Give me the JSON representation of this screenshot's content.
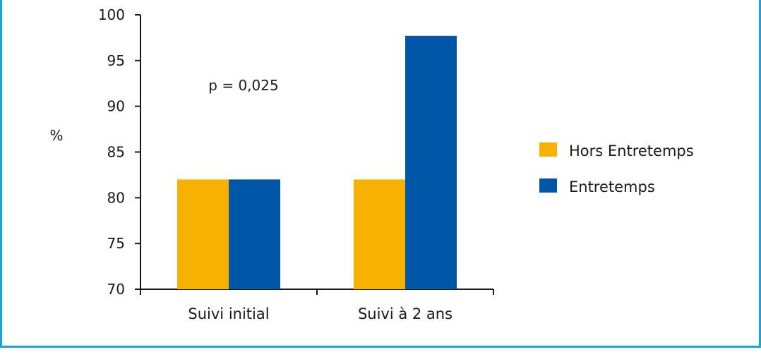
{
  "chart_data": {
    "type": "bar",
    "categories": [
      "Suivi initial",
      "Suivi à 2 ans"
    ],
    "series": [
      {
        "name": "Hors Entretemps",
        "values": [
          82,
          82
        ],
        "color": "#f7b100"
      },
      {
        "name": "Entretemps",
        "values": [
          82,
          97.7
        ],
        "color": "#0057a8"
      }
    ],
    "ylabel": "%",
    "ylim": [
      70,
      100
    ],
    "yticks": [
      "70",
      "75",
      "80",
      "85",
      "90",
      "95",
      "100"
    ],
    "annotations": [
      "p = 0,025"
    ],
    "legend_position": "right",
    "grid": false,
    "frame_color": "#1ba3e0"
  }
}
